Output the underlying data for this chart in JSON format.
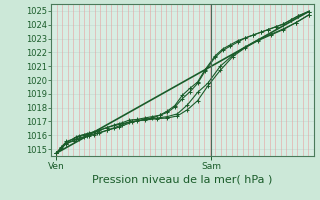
{
  "bg_color": "#cce8d8",
  "plot_bg_color": "#d8ede3",
  "grid_color_h": "#c8ddd4",
  "grid_color_v": "#e8a0a0",
  "line_color": "#1a5c2a",
  "vline_color": "#4a6a5a",
  "xlabel": "Pression niveau de la mer( hPa )",
  "xlabel_fontsize": 8,
  "ylim": [
    1014.5,
    1025.5
  ],
  "yticks": [
    1015,
    1016,
    1017,
    1018,
    1019,
    1020,
    1021,
    1022,
    1023,
    1024,
    1025
  ],
  "xtick_labels": [
    "Ven",
    "Sam"
  ],
  "xtick_positions": [
    0.0,
    0.615
  ],
  "vline_x": 0.615,
  "xlim": [
    -0.02,
    1.02
  ],
  "line1_x": [
    0.0,
    0.02,
    0.04,
    0.07,
    0.09,
    0.11,
    0.13,
    0.15,
    0.17,
    0.2,
    0.23,
    0.26,
    0.29,
    0.32,
    0.35,
    0.38,
    0.41,
    0.44,
    0.47,
    0.5,
    0.53,
    0.56,
    0.59,
    0.63,
    0.66,
    0.69,
    0.72,
    0.75,
    0.78,
    0.81,
    0.84,
    0.87,
    0.9,
    0.93,
    0.96,
    1.0
  ],
  "line1_y": [
    1014.7,
    1015.1,
    1015.4,
    1015.6,
    1015.75,
    1015.85,
    1015.95,
    1016.05,
    1016.15,
    1016.35,
    1016.55,
    1016.75,
    1016.95,
    1017.05,
    1017.15,
    1017.25,
    1017.45,
    1017.75,
    1018.15,
    1018.9,
    1019.4,
    1019.85,
    1020.75,
    1021.75,
    1022.25,
    1022.55,
    1022.85,
    1023.05,
    1023.25,
    1023.45,
    1023.65,
    1023.85,
    1024.05,
    1024.35,
    1024.65,
    1024.95
  ],
  "line2_x": [
    0.0,
    0.02,
    0.04,
    0.07,
    0.09,
    0.11,
    0.13,
    0.15,
    0.17,
    0.2,
    0.23,
    0.26,
    0.29,
    0.32,
    0.35,
    0.38,
    0.41,
    0.44,
    0.47,
    0.5,
    0.53,
    0.56,
    0.59,
    0.63,
    0.66,
    0.69,
    0.72,
    0.75,
    0.78,
    0.81,
    0.84,
    0.87,
    0.9,
    0.93,
    0.96,
    1.0
  ],
  "line2_y": [
    1014.7,
    1015.15,
    1015.55,
    1015.75,
    1015.95,
    1016.05,
    1016.15,
    1016.25,
    1016.35,
    1016.55,
    1016.75,
    1016.9,
    1017.1,
    1017.15,
    1017.25,
    1017.35,
    1017.45,
    1017.65,
    1018.05,
    1018.65,
    1019.15,
    1019.75,
    1020.65,
    1021.65,
    1022.15,
    1022.45,
    1022.75,
    1023.05,
    1023.25,
    1023.45,
    1023.65,
    1023.85,
    1024.05,
    1024.35,
    1024.65,
    1024.95
  ],
  "line3_x": [
    0.0,
    0.04,
    0.08,
    0.12,
    0.16,
    0.2,
    0.25,
    0.3,
    0.35,
    0.4,
    0.44,
    0.48,
    0.52,
    0.56,
    0.6,
    0.65,
    0.7,
    0.75,
    0.8,
    0.85,
    0.9,
    0.95,
    1.0
  ],
  "line3_y": [
    1014.7,
    1015.4,
    1015.75,
    1015.95,
    1016.15,
    1016.35,
    1016.6,
    1016.95,
    1017.15,
    1017.25,
    1017.35,
    1017.55,
    1018.2,
    1019.1,
    1019.75,
    1021.0,
    1021.8,
    1022.4,
    1022.9,
    1023.3,
    1023.7,
    1024.15,
    1024.7
  ],
  "line4_x": [
    0.0,
    0.04,
    0.08,
    0.12,
    0.16,
    0.2,
    0.25,
    0.3,
    0.35,
    0.4,
    0.44,
    0.48,
    0.52,
    0.56,
    0.6,
    0.65,
    0.7,
    0.75,
    0.8,
    0.85,
    0.9,
    0.95,
    1.0
  ],
  "line4_y": [
    1014.7,
    1015.45,
    1015.9,
    1016.1,
    1016.3,
    1016.55,
    1016.8,
    1017.0,
    1017.1,
    1017.2,
    1017.25,
    1017.4,
    1017.85,
    1018.5,
    1019.55,
    1020.7,
    1021.7,
    1022.35,
    1022.85,
    1023.25,
    1023.65,
    1024.15,
    1024.7
  ],
  "smooth_line_x": [
    0.0,
    1.0
  ],
  "smooth_line_y": [
    1014.7,
    1024.95
  ],
  "tick_fontsize": 6,
  "tick_color": "#1a5c2a",
  "axis_color": "#4a7a5a",
  "marker": "+",
  "markersize": 3.0,
  "linewidth": 0.8,
  "num_vgrid": 48,
  "num_hgrid": 11
}
